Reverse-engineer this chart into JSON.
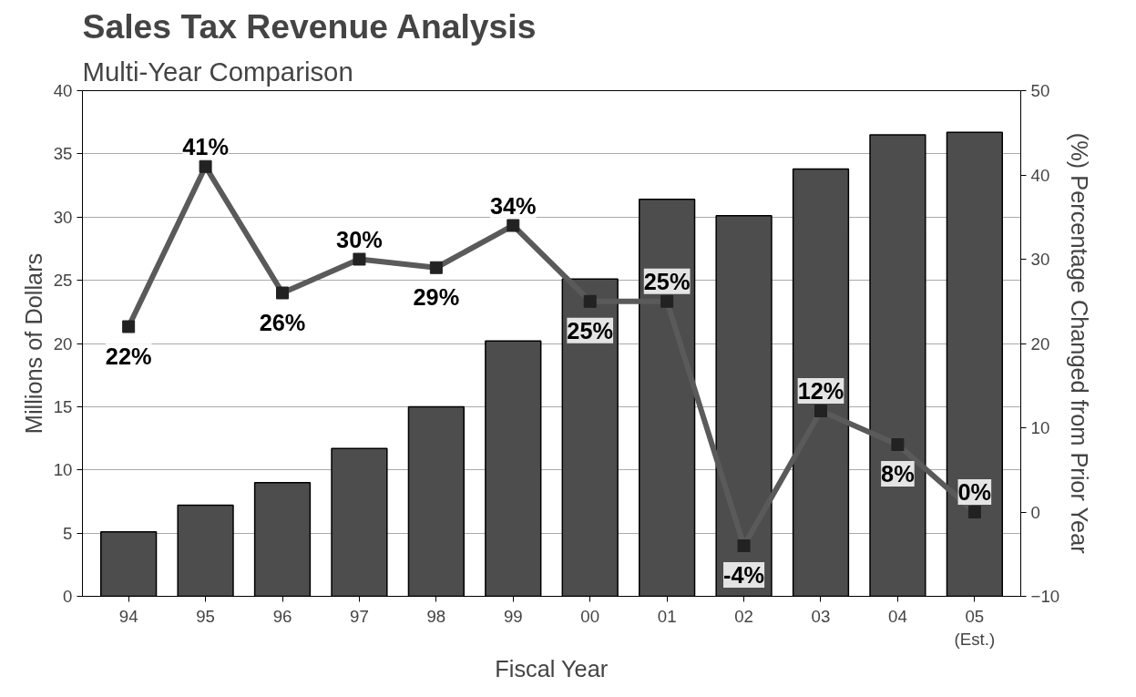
{
  "chart_data": {
    "type": "bar",
    "title": "Sales Tax Revenue Analysis",
    "subtitle": "Multi-Year Comparison",
    "xlabel": "Fiscal Year",
    "ylabel": "Millions of Dollars",
    "y2label": "(%) Percentage Changed from Prior Year",
    "categories": [
      "94",
      "95",
      "96",
      "97",
      "98",
      "99",
      "00",
      "01",
      "02",
      "03",
      "04",
      "05\n(Est.)"
    ],
    "series": [
      {
        "color": "#4d4d4d",
        "values": [
          5.1,
          7.2,
          9.0,
          11.7,
          15.0,
          20.2,
          25.1,
          31.4,
          30.1,
          33.8,
          36.5,
          36.7
        ]
      },
      {
        "type": "line",
        "axis": "y2",
        "color": "#5a5a5a",
        "marker": "square",
        "values": [
          22,
          41,
          26,
          30,
          29,
          34,
          25,
          25,
          -4,
          12,
          8,
          0
        ],
        "value_labels": [
          "22%",
          "41%",
          "26%",
          "30%",
          "29%",
          "34%",
          "25%",
          "25%",
          "-4%",
          "12%",
          "8%",
          "0%"
        ]
      }
    ],
    "ylim": [
      0,
      40
    ],
    "yticks": [
      0,
      5,
      10,
      15,
      20,
      25,
      30,
      35,
      40
    ],
    "y2lim": [
      -10,
      50
    ],
    "y2ticks": [
      -10,
      0,
      10,
      20,
      30,
      40,
      50
    ],
    "grid": "y"
  }
}
